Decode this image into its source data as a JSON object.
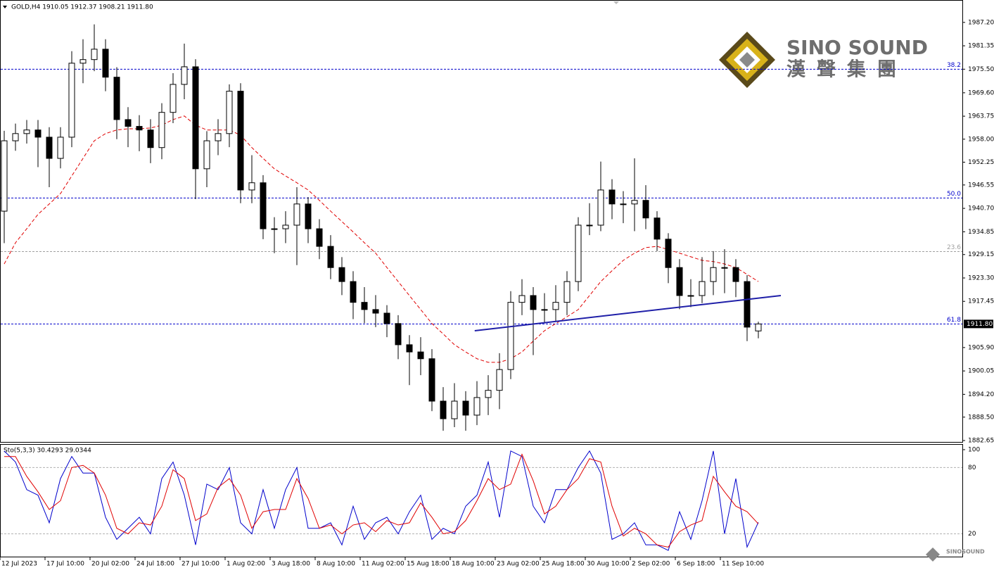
{
  "logo": {
    "name": "SINO SOUND",
    "chinese": "漢聲集團",
    "small": "SINOSOUND"
  },
  "chart_data": [
    {
      "type": "candlestick",
      "title": "GOLD,H4  1910.05 1912.37 1908.21 1911.80",
      "categories": [
        null,
        "12 Jul 2023",
        null,
        null,
        null,
        "17 Jul 10:00",
        null,
        null,
        null,
        "20 Jul 02:00",
        null,
        null,
        null,
        "24 Jul 18:00",
        null,
        null,
        null,
        "27 Jul 10:00",
        null,
        null,
        null,
        "1 Aug 02:00",
        null,
        null,
        null,
        "3 Aug 18:00",
        null,
        null,
        null,
        "8 Aug 10:00",
        null,
        null,
        null,
        "11 Aug 02:00",
        null,
        null,
        null,
        "15 Aug 18:00",
        null,
        null,
        null,
        "18 Aug 10:00",
        null,
        null,
        null,
        "23 Aug 02:00",
        null,
        null,
        null,
        "25 Aug 18:00",
        null,
        null,
        null,
        "30 Aug 10:00",
        null,
        null,
        null,
        "2 Sep 02:00",
        null,
        null,
        null,
        "6 Sep 18:00",
        null,
        null,
        null,
        "11 Sep 10:00",
        null,
        null
      ],
      "open": [
        1940.0,
        1957.6,
        1959.4,
        1960.3,
        1958.5,
        1953.2,
        1958.5,
        1977.0,
        1977.9,
        1980.5,
        1973.5,
        1962.9,
        1961.2,
        1960.3,
        1955.9,
        1964.7,
        1971.7,
        1976.1,
        1950.6,
        1957.6,
        1959.4,
        1970.0,
        1945.3,
        1947.1,
        1935.6,
        1935.6,
        1936.5,
        1941.8,
        1935.6,
        1931.2,
        1925.9,
        1922.4,
        1917.2,
        1915.4,
        1914.5,
        1911.9,
        1906.6,
        1904.8,
        1903.1,
        1892.5,
        1888.1,
        1892.5,
        1889.0,
        1893.4,
        1895.2,
        1900.4,
        1917.2,
        1918.9,
        1915.4,
        1915.4,
        1917.2,
        1922.4,
        1936.5,
        1936.5,
        1945.3,
        1941.8,
        1941.8,
        1942.7,
        1938.3,
        1933.0,
        1925.9,
        1918.9,
        1918.9,
        1922.4,
        1925.9,
        1925.9,
        1922.4,
        1910.05
      ],
      "high": [
        1960.1,
        1961.9,
        1962.8,
        1962.8,
        1961.0,
        1961.0,
        1980.0,
        1983.0,
        1986.7,
        1983.0,
        1976.0,
        1966.0,
        1964.0,
        1963.0,
        1967.0,
        1974.5,
        1981.9,
        1978.0,
        1960.0,
        1963.0,
        1971.7,
        1972.0,
        1954.0,
        1949.0,
        1938.5,
        1940.0,
        1946.0,
        1943.5,
        1938.0,
        1934.0,
        1928.5,
        1925.0,
        1921.0,
        1919.0,
        1916.5,
        1914.0,
        1909.0,
        1908.5,
        1905.5,
        1896.0,
        1897.0,
        1895.0,
        1897.5,
        1899.0,
        1904.5,
        1920.0,
        1923.0,
        1921.0,
        1919.5,
        1921.5,
        1925.0,
        1938.5,
        1942.0,
        1952.4,
        1948.0,
        1945.0,
        1953.2,
        1946.5,
        1940.0,
        1934.5,
        1928.0,
        1923.0,
        1928.5,
        1930.0,
        1930.5,
        1928.0,
        1924.0,
        1912.37
      ],
      "low": [
        1932.0,
        1955.1,
        1956.9,
        1951.0,
        1946.0,
        1950.7,
        1956.0,
        1972.0,
        1975.0,
        1970.0,
        1958.0,
        1956.0,
        1955.0,
        1952.0,
        1953.0,
        1962.0,
        1968.0,
        1943.0,
        1946.0,
        1954.0,
        1956.0,
        1942.0,
        1942.0,
        1933.0,
        1929.5,
        1932.0,
        1926.5,
        1932.0,
        1928.0,
        1923.0,
        1919.0,
        1913.0,
        1912.0,
        1911.0,
        1908.5,
        1903.0,
        1896.5,
        1899.0,
        1890.0,
        1885.1,
        1886.0,
        1885.1,
        1886.5,
        1889.0,
        1890.5,
        1898.0,
        1914.0,
        1904.0,
        1912.0,
        1912.5,
        1914.0,
        1920.0,
        1934.0,
        1935.0,
        1938.0,
        1937.0,
        1935.0,
        1935.5,
        1930.0,
        1922.0,
        1915.5,
        1916.0,
        1917.0,
        1919.0,
        1919.5,
        1918.5,
        1907.5,
        1908.21
      ],
      "close": [
        1957.6,
        1959.4,
        1960.3,
        1958.5,
        1953.2,
        1958.5,
        1977.0,
        1977.9,
        1980.5,
        1973.5,
        1962.9,
        1961.2,
        1960.3,
        1955.9,
        1964.7,
        1971.7,
        1976.1,
        1950.6,
        1957.6,
        1959.4,
        1970.0,
        1945.3,
        1947.1,
        1935.6,
        1935.6,
        1936.5,
        1941.8,
        1935.6,
        1931.2,
        1925.9,
        1922.4,
        1917.2,
        1915.4,
        1914.5,
        1911.9,
        1906.6,
        1904.8,
        1903.1,
        1892.5,
        1888.1,
        1892.5,
        1889.0,
        1893.4,
        1895.2,
        1900.4,
        1917.2,
        1918.9,
        1915.4,
        1915.4,
        1917.2,
        1922.4,
        1936.5,
        1936.5,
        1945.3,
        1941.8,
        1941.8,
        1942.7,
        1938.3,
        1933.0,
        1925.9,
        1918.9,
        1918.9,
        1922.4,
        1925.9,
        1925.9,
        1922.4,
        1911.0,
        1911.8
      ],
      "up_color": "#ffffff",
      "down_color": "#000000",
      "overlays": [
        {
          "color": "#e00000",
          "dashed": true,
          "values": [
            1926.8,
            1932.1,
            1935.6,
            1939.2,
            1941.8,
            1944.4,
            1948.8,
            1953.2,
            1957.6,
            1959.4,
            1960.3,
            1960.6,
            1960.6,
            1960.8,
            1961.5,
            1962.9,
            1963.8,
            1961.5,
            1960.3,
            1960.3,
            1960.3,
            1959.0,
            1955.9,
            1953.2,
            1950.6,
            1948.8,
            1947.1,
            1945.3,
            1942.7,
            1940.0,
            1937.4,
            1934.8,
            1932.1,
            1929.5,
            1925.9,
            1922.4,
            1918.9,
            1915.4,
            1911.9,
            1909.3,
            1906.6,
            1904.8,
            1903.1,
            1902.2,
            1902.2,
            1903.1,
            1904.8,
            1907.5,
            1910.1,
            1911.9,
            1913.6,
            1915.4,
            1918.9,
            1922.4,
            1925.1,
            1927.7,
            1929.5,
            1930.9,
            1931.2,
            1930.4,
            1929.5,
            1928.6,
            1927.7,
            1927.4,
            1926.8,
            1925.9,
            1924.2,
            1922.4
          ]
        }
      ],
      "levels": [
        {
          "value": 1975.5,
          "label": "38.2",
          "color": "#0000cc"
        },
        {
          "value": 1943.3,
          "label": "50.0",
          "color": "#0000cc"
        },
        {
          "value": 1929.9,
          "label": "23.6",
          "color": "#a0a0a0"
        },
        {
          "value": 1911.8,
          "label": "61.8",
          "color": "#0000cc"
        }
      ],
      "trendline": {
        "x": [
          41.8,
          69.0
        ],
        "y": [
          1910.1,
          1918.9
        ],
        "color": "#1f1fa8"
      },
      "current_price": {
        "value": 1911.8,
        "label": "1911.80"
      },
      "ylim": [
        1882.3,
        1992.8
      ],
      "yticks": [
        {
          "value": 1987.2,
          "label": "1987.20"
        },
        {
          "value": 1981.35,
          "label": "1981.35"
        },
        {
          "value": 1975.5,
          "label": "1975.50"
        },
        {
          "value": 1969.6,
          "label": "1969.60"
        },
        {
          "value": 1963.75,
          "label": "1963.75"
        },
        {
          "value": 1958.0,
          "label": "1958.00"
        },
        {
          "value": 1952.25,
          "label": "1952.25"
        },
        {
          "value": 1946.55,
          "label": "1946.55"
        },
        {
          "value": 1940.7,
          "label": "1940.70"
        },
        {
          "value": 1934.85,
          "label": "1934.85"
        },
        {
          "value": 1929.15,
          "label": "1929.15"
        },
        {
          "value": 1923.3,
          "label": "1923.30"
        },
        {
          "value": 1917.45,
          "label": "1917.45"
        },
        {
          "value": 1905.9,
          "label": "1905.90"
        },
        {
          "value": 1900.05,
          "label": "1900.05"
        },
        {
          "value": 1894.2,
          "label": "1894.20"
        },
        {
          "value": 1888.5,
          "label": "1888.50"
        },
        {
          "value": 1882.65,
          "label": "1882.65"
        }
      ]
    },
    {
      "type": "line",
      "title": "Sto(5,3,3) 30.4293 29.0344",
      "series": [
        {
          "color": "#0000cc",
          "values": [
            95,
            85,
            60,
            55,
            30,
            70,
            90,
            75,
            75,
            35,
            15,
            25,
            35,
            20,
            70,
            85,
            55,
            10,
            65,
            60,
            80,
            30,
            20,
            60,
            25,
            60,
            80,
            25,
            25,
            30,
            10,
            45,
            15,
            30,
            35,
            20,
            40,
            55,
            15,
            25,
            20,
            45,
            55,
            85,
            35,
            95,
            90,
            45,
            30,
            60,
            60,
            80,
            95,
            75,
            15,
            20,
            30,
            10,
            10,
            5,
            40,
            15,
            50,
            95,
            20,
            70,
            8,
            30.4293
          ]
        },
        {
          "color": "#e00000",
          "values": [
            90,
            90,
            72,
            58,
            42,
            50,
            80,
            82,
            75,
            55,
            25,
            20,
            30,
            28,
            45,
            78,
            70,
            32,
            38,
            62,
            70,
            55,
            25,
            40,
            42,
            42,
            70,
            52,
            25,
            28,
            20,
            28,
            30,
            22,
            32,
            28,
            30,
            48,
            35,
            20,
            22,
            32,
            50,
            70,
            60,
            65,
            92,
            68,
            38,
            45,
            60,
            70,
            88,
            85,
            45,
            18,
            25,
            20,
            10,
            8,
            22,
            28,
            32,
            72,
            58,
            45,
            40,
            29.0344
          ]
        }
      ],
      "ylim": [
        0,
        100
      ],
      "yticks": [
        20,
        80,
        100
      ]
    }
  ]
}
